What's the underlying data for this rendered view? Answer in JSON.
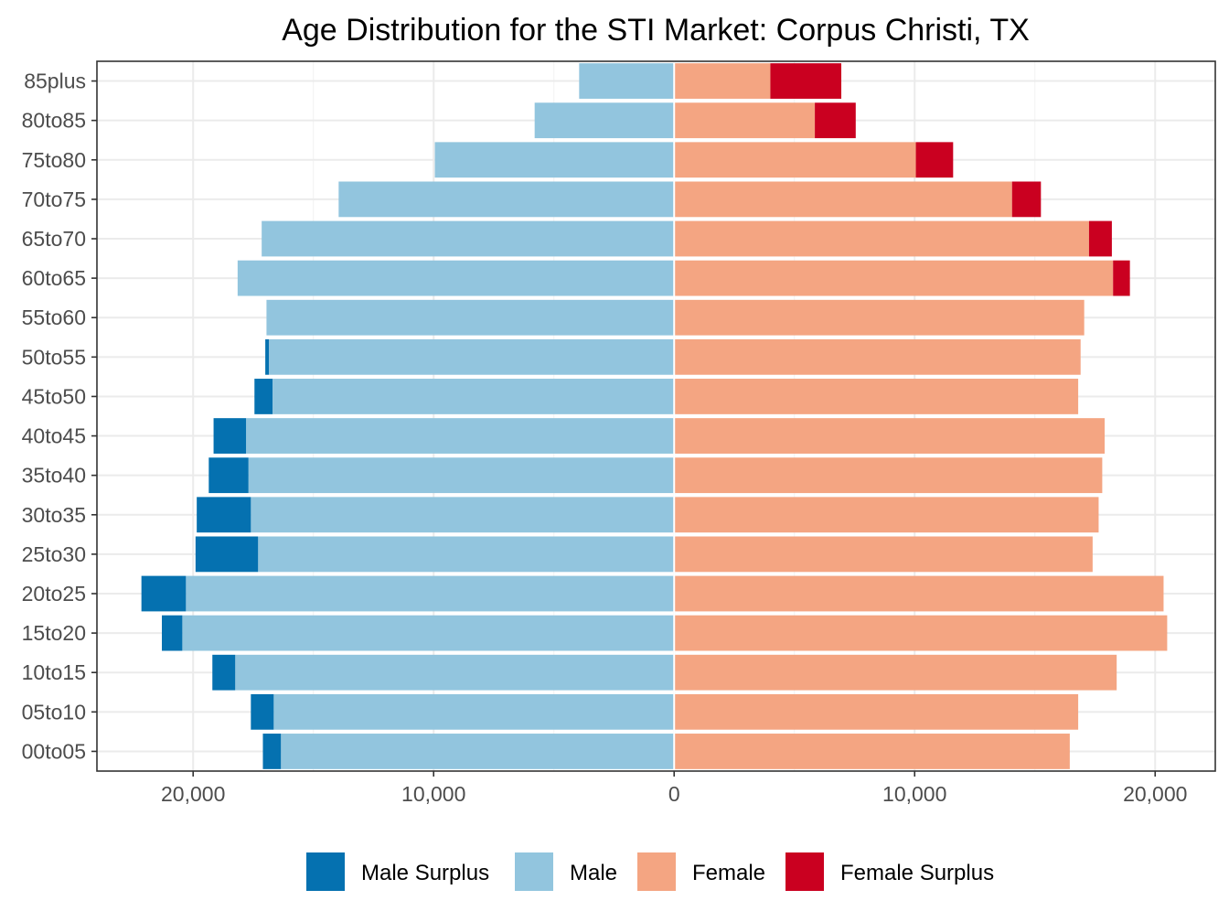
{
  "chart_data": {
    "type": "bar",
    "orientation": "horizontal",
    "layout": "population-pyramid",
    "title": "Age Distribution for the STI Market: Corpus Christi, TX",
    "xlabel": "",
    "ylabel": "",
    "xlim": [
      -24000,
      22500
    ],
    "x_ticks": [
      -20000,
      -10000,
      0,
      10000,
      20000
    ],
    "x_tick_labels": [
      "20,000",
      "10,000",
      "0",
      "10,000",
      "20,000"
    ],
    "grid": true,
    "legend_position": "bottom",
    "categories": [
      "00to05",
      "05to10",
      "10to15",
      "15to20",
      "20to25",
      "25to30",
      "30to35",
      "35to40",
      "40to45",
      "45to50",
      "50to55",
      "55to60",
      "60to65",
      "65to70",
      "70to75",
      "75to80",
      "80to85",
      "85plus"
    ],
    "series": [
      {
        "name": "Male Surplus",
        "color": "#0571b0",
        "side": "left",
        "values": [
          750,
          950,
          950,
          850,
          1850,
          2600,
          2250,
          1650,
          1350,
          750,
          150,
          0,
          0,
          0,
          0,
          0,
          0,
          0
        ]
      },
      {
        "name": "Male",
        "color": "#92c5de",
        "side": "left",
        "values": [
          16350,
          16650,
          18250,
          20450,
          20300,
          17300,
          17600,
          17700,
          17800,
          16700,
          16850,
          16950,
          18150,
          17150,
          13950,
          9950,
          5800,
          3950
        ]
      },
      {
        "name": "Female",
        "color": "#f4a582",
        "side": "right",
        "values": [
          16450,
          16800,
          18400,
          20500,
          20350,
          17400,
          17650,
          17800,
          17900,
          16800,
          16900,
          17050,
          18250,
          17250,
          14050,
          10050,
          5850,
          4000
        ]
      },
      {
        "name": "Female Surplus",
        "color": "#ca0020",
        "side": "right",
        "values": [
          0,
          0,
          0,
          0,
          0,
          0,
          0,
          0,
          0,
          0,
          0,
          0,
          700,
          950,
          1200,
          1550,
          1700,
          2950
        ]
      }
    ]
  }
}
